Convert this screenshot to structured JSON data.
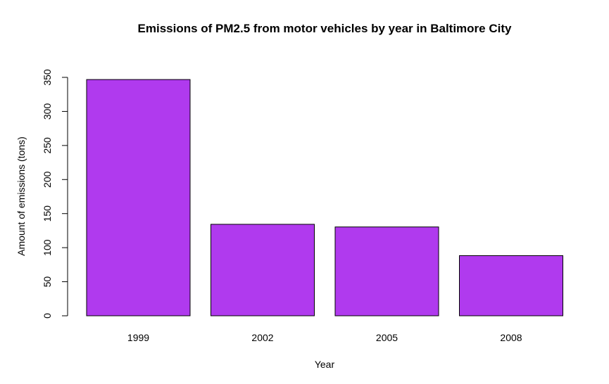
{
  "chart_data": {
    "type": "bar",
    "title": "Emissions of PM2.5 from motor vehicles by year in Baltimore City",
    "xlabel": "Year",
    "ylabel": "Amount of emissions (tons)",
    "categories": [
      "1999",
      "2002",
      "2005",
      "2008"
    ],
    "values": [
      346.8,
      134.3,
      130.4,
      88.3
    ],
    "ylim": [
      0,
      350
    ],
    "yticks": [
      0,
      50,
      100,
      150,
      200,
      250,
      300,
      350
    ],
    "ytick_labels": [
      "0",
      "50",
      "100",
      "150",
      "200",
      "250",
      "300",
      "350"
    ],
    "bar_color": "#b03aee",
    "grid": false,
    "legend": "none"
  }
}
